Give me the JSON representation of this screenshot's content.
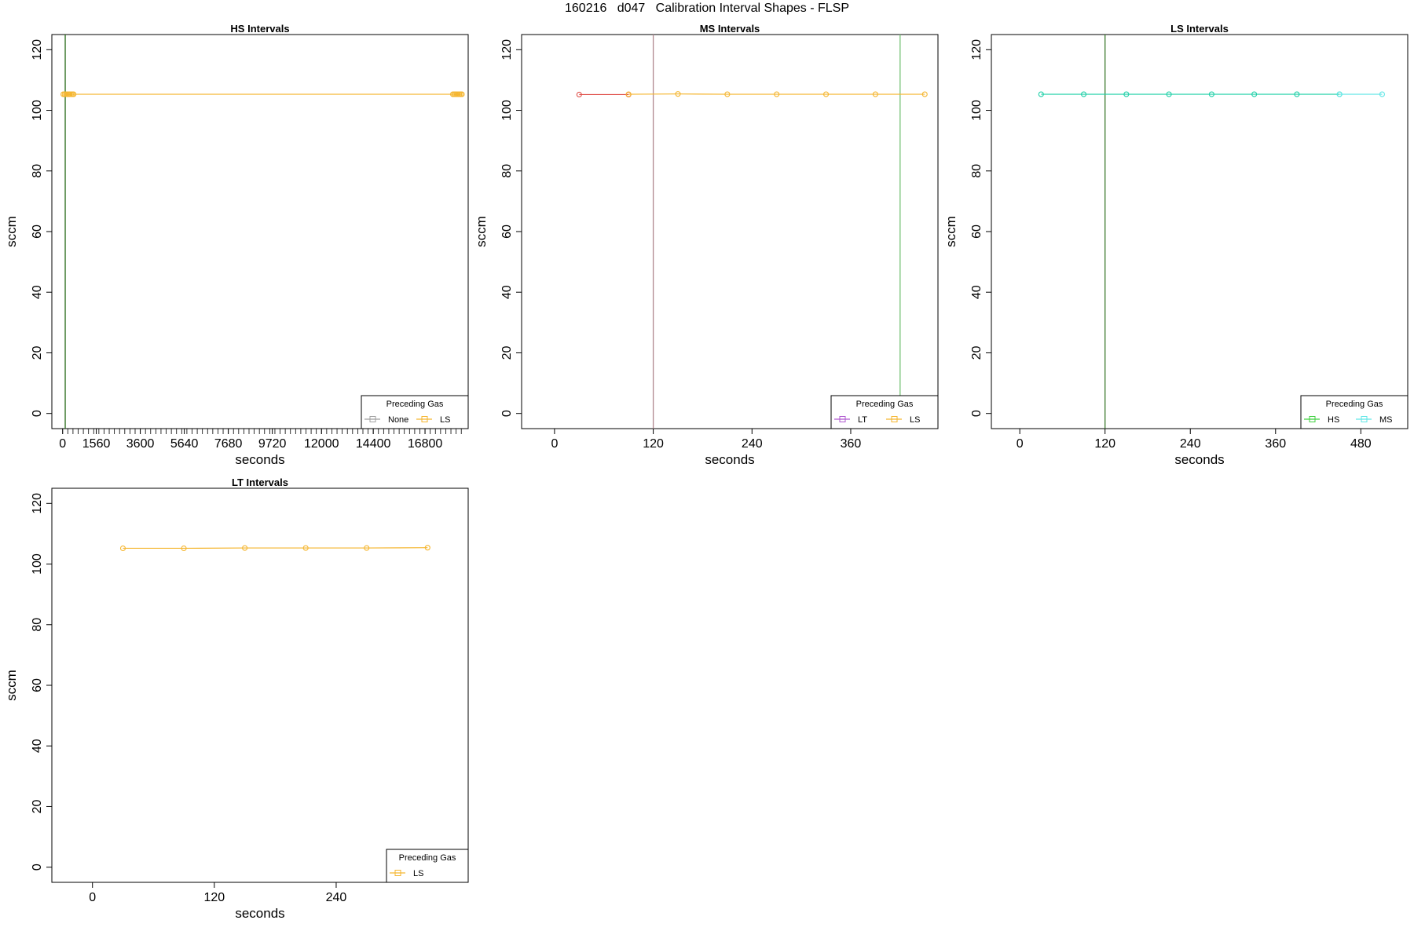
{
  "page": {
    "title": "160216   d047   Calibration Interval Shapes - FLSP"
  },
  "colors": {
    "None": "#a0a0a0",
    "LS": "#f5b630",
    "LT": "#b05ad0",
    "HS": "#40d040",
    "MS": "#60e6e6",
    "MS_line_red": "#e0504a",
    "vline_dark_green": "#2a6b1a",
    "vline_mauve": "#b08890",
    "vline_light_green": "#74c274",
    "vline_green": "#3d7a2e"
  },
  "chart_data": [
    {
      "type": "line",
      "name": "hs",
      "title": "HS Intervals",
      "xlabel": "seconds",
      "ylabel": "sccm",
      "xlim": [
        -500,
        18800
      ],
      "ylim": [
        -5,
        125
      ],
      "yticks": [
        0,
        20,
        40,
        60,
        80,
        100,
        120
      ],
      "xticks": [
        0,
        1560,
        3600,
        5640,
        7680,
        9720,
        12000,
        14400,
        16800
      ],
      "minor_xtick_step": 240,
      "minor_xtick_range": [
        0,
        18480
      ],
      "vlines": [
        {
          "x": 120,
          "color": "vline_dark_green"
        }
      ],
      "legend": {
        "title": "Preceding Gas",
        "entries": [
          "None",
          "LS"
        ],
        "position": "bottom-right"
      },
      "series": [
        {
          "name": "LS",
          "color": "LS",
          "x": [
            30,
            90,
            150,
            210,
            270,
            330,
            390,
            450,
            510,
            18090,
            18150,
            18210,
            18270,
            18330,
            18390,
            18450,
            18510
          ],
          "y": [
            105.3,
            105.3,
            105.3,
            105.3,
            105.3,
            105.3,
            105.3,
            105.3,
            105.3,
            105.3,
            105.3,
            105.3,
            105.3,
            105.3,
            105.3,
            105.3,
            105.3
          ]
        }
      ]
    },
    {
      "type": "line",
      "name": "ms",
      "title": "MS Intervals",
      "xlabel": "seconds",
      "ylabel": "sccm",
      "xlim": [
        -40,
        466
      ],
      "ylim": [
        -5,
        125
      ],
      "yticks": [
        0,
        20,
        40,
        60,
        80,
        100,
        120
      ],
      "xticks": [
        0,
        120,
        240,
        360
      ],
      "vlines": [
        {
          "x": 120,
          "color": "vline_mauve"
        },
        {
          "x": 420,
          "color": "vline_light_green"
        }
      ],
      "legend": {
        "title": "Preceding Gas",
        "entries": [
          "LT",
          "LS"
        ],
        "position": "bottom-right"
      },
      "series": [
        {
          "name": "LT",
          "color": "MS_line_red",
          "x": [
            30,
            90
          ],
          "y": [
            105.2,
            105.2
          ]
        },
        {
          "name": "LS",
          "color": "LS",
          "x": [
            90,
            150,
            210,
            270,
            330,
            390,
            450
          ],
          "y": [
            105.3,
            105.4,
            105.3,
            105.3,
            105.3,
            105.3,
            105.3
          ]
        }
      ]
    },
    {
      "type": "line",
      "name": "ls",
      "title": "LS Intervals",
      "xlabel": "seconds",
      "ylabel": "sccm",
      "xlim": [
        -40,
        546
      ],
      "ylim": [
        -5,
        125
      ],
      "yticks": [
        0,
        20,
        40,
        60,
        80,
        100,
        120
      ],
      "xticks": [
        0,
        120,
        240,
        360,
        480
      ],
      "vlines": [
        {
          "x": 120,
          "color": "vline_green"
        }
      ],
      "legend": {
        "title": "Preceding Gas",
        "entries": [
          "HS",
          "MS"
        ],
        "position": "bottom-right"
      },
      "series": [
        {
          "name": "HS",
          "color": "#20d0a8",
          "x": [
            30,
            90,
            150,
            210,
            270,
            330,
            390,
            450
          ],
          "y": [
            105.3,
            105.3,
            105.3,
            105.3,
            105.3,
            105.3,
            105.3,
            105.3
          ]
        },
        {
          "name": "MS",
          "color": "MS",
          "x": [
            450,
            510
          ],
          "y": [
            105.3,
            105.3
          ]
        }
      ]
    },
    {
      "type": "line",
      "name": "lt",
      "title": "LT Intervals",
      "xlabel": "seconds",
      "ylabel": "sccm",
      "xlim": [
        -40,
        370
      ],
      "ylim": [
        -5,
        125
      ],
      "yticks": [
        0,
        20,
        40,
        60,
        80,
        100,
        120
      ],
      "xticks": [
        0,
        120,
        240
      ],
      "vlines": [],
      "legend": {
        "title": "Preceding Gas",
        "entries": [
          "LS"
        ],
        "position": "bottom-right"
      },
      "series": [
        {
          "name": "LS",
          "color": "LS",
          "x": [
            30,
            90,
            150,
            210,
            270,
            330
          ],
          "y": [
            105.2,
            105.2,
            105.3,
            105.3,
            105.3,
            105.4
          ]
        }
      ]
    }
  ]
}
